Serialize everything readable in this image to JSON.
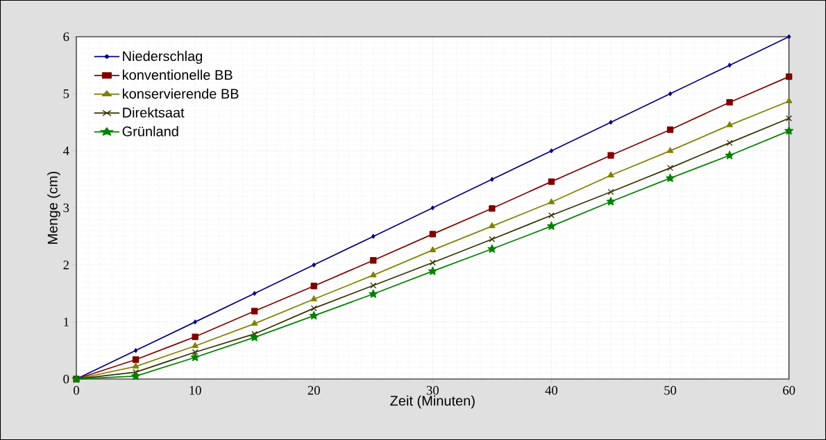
{
  "chart_data": {
    "type": "line",
    "xlabel": "Zeit (Minuten)",
    "ylabel": "Menge (cm)",
    "x": [
      0,
      5,
      10,
      15,
      20,
      25,
      30,
      35,
      40,
      45,
      50,
      55,
      60
    ],
    "xlim": [
      0,
      60
    ],
    "xticks": [
      0,
      10,
      20,
      30,
      40,
      50,
      60
    ],
    "ylim": [
      0,
      6
    ],
    "yticks": [
      0,
      1,
      2,
      3,
      4,
      5,
      6
    ],
    "grid": true,
    "legend": "top left",
    "series": [
      {
        "name": "Niederschlag",
        "color": "#000080",
        "marker": "diamond",
        "values": [
          0,
          0.5,
          1,
          1.5,
          2,
          2.5,
          3,
          3.5,
          4,
          4.5,
          5,
          5.5,
          6
        ]
      },
      {
        "name": "konventionelle BB",
        "color": "#800000",
        "marker": "square",
        "values": [
          0,
          0.34,
          0.74,
          1.19,
          1.63,
          2.08,
          2.54,
          2.99,
          3.46,
          3.92,
          4.37,
          4.85,
          5.3
        ]
      },
      {
        "name": "konservierende BB",
        "color": "#808000",
        "marker": "triangle",
        "values": [
          0,
          0.22,
          0.58,
          0.97,
          1.4,
          1.82,
          2.26,
          2.68,
          3.1,
          3.57,
          4.0,
          4.45,
          4.87
        ]
      },
      {
        "name": "Direktsaat",
        "color": "#333300",
        "marker": "cross",
        "values": [
          0,
          0.12,
          0.47,
          0.79,
          1.24,
          1.64,
          2.04,
          2.45,
          2.87,
          3.28,
          3.7,
          4.14,
          4.57
        ]
      },
      {
        "name": "Grünland",
        "color": "#008000",
        "marker": "star",
        "values": [
          0,
          0.05,
          0.38,
          0.73,
          1.11,
          1.49,
          1.89,
          2.28,
          2.68,
          3.11,
          3.52,
          3.92,
          4.35
        ]
      }
    ]
  }
}
